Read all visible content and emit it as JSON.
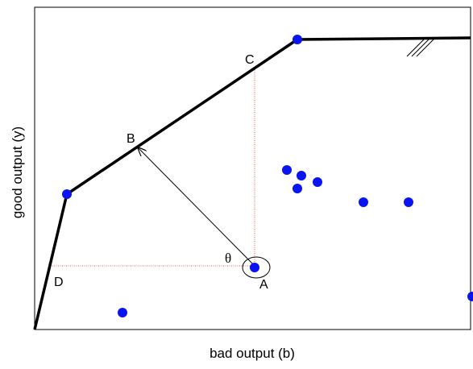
{
  "diagram": {
    "xlabel": "bad output (b)",
    "ylabel": "good output (y)",
    "points": {
      "a": "A",
      "b": "B",
      "c": "C",
      "d": "D"
    },
    "angle": "θ",
    "colors": {
      "frontier": "#000000",
      "observation": "#0a14f0",
      "guide": "#e06060",
      "arrow": "#000000"
    }
  }
}
